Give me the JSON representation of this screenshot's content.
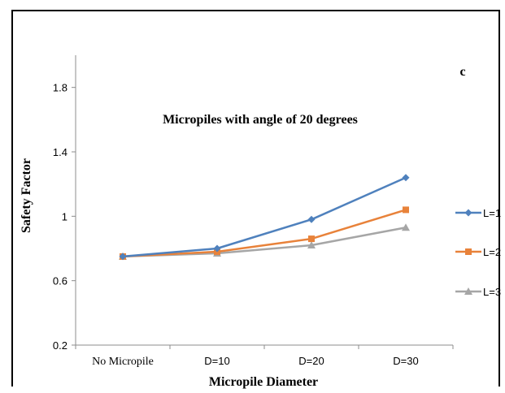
{
  "chart_data": {
    "type": "line",
    "panel_label": "c",
    "title": "Micropiles with angle of 20 degrees",
    "xlabel": "Micropile Diameter",
    "ylabel": "Safety Factor",
    "categories": [
      "No Micropile",
      "D=10",
      "D=20",
      "D=30"
    ],
    "ylim": [
      0.2,
      2.0
    ],
    "yticks": [
      "0.2",
      "0.6",
      "1",
      "1.4",
      "1.8"
    ],
    "grid": false,
    "legend_position": "right",
    "series": [
      {
        "name": "L=1",
        "marker": "diamond",
        "color": "#4f81bd",
        "values": [
          0.75,
          0.8,
          0.98,
          1.24
        ]
      },
      {
        "name": "L=2",
        "marker": "square",
        "color": "#e8823a",
        "values": [
          0.75,
          0.78,
          0.86,
          1.04
        ]
      },
      {
        "name": "L=3",
        "marker": "triangle",
        "color": "#a6a6a6",
        "values": [
          0.75,
          0.77,
          0.82,
          0.93
        ]
      }
    ]
  }
}
